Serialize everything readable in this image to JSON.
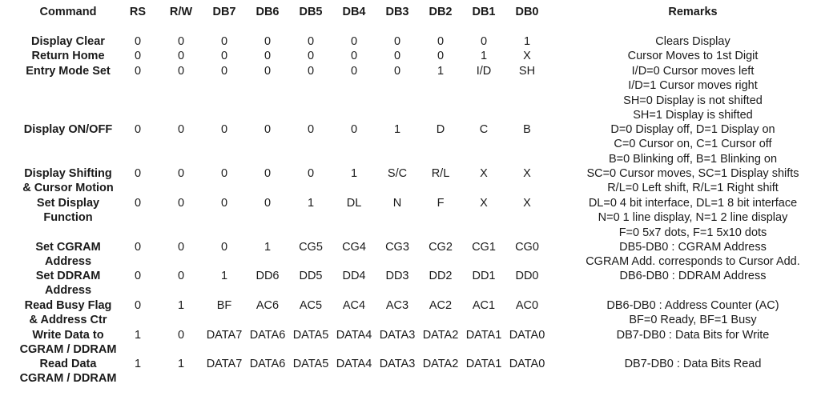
{
  "headers": {
    "command": "Command",
    "rs": "RS",
    "rw": "R/W",
    "db7": "DB7",
    "db6": "DB6",
    "db5": "DB5",
    "db4": "DB4",
    "db3": "DB3",
    "db2": "DB2",
    "db1": "DB1",
    "db0": "DB0",
    "remarks": "Remarks"
  },
  "rows": [
    {
      "command": [
        "Display Clear"
      ],
      "bits": [
        "0",
        "0",
        "0",
        "0",
        "0",
        "0",
        "0",
        "0",
        "0",
        "1"
      ],
      "remarks": [
        "Clears Display"
      ]
    },
    {
      "command": [
        "Return Home"
      ],
      "bits": [
        "0",
        "0",
        "0",
        "0",
        "0",
        "0",
        "0",
        "0",
        "1",
        "X"
      ],
      "remarks": [
        "Cursor Moves to 1st Digit"
      ]
    },
    {
      "command": [
        "Entry Mode Set"
      ],
      "bits": [
        "0",
        "0",
        "0",
        "0",
        "0",
        "0",
        "0",
        "1",
        "I/D",
        "SH"
      ],
      "remarks": [
        "I/D=0 Cursor moves left",
        "I/D=1 Cursor moves right",
        "SH=0 Display is not shifted",
        "SH=1 Display is shifted"
      ]
    },
    {
      "command": [
        "Display ON/OFF"
      ],
      "bits": [
        "0",
        "0",
        "0",
        "0",
        "0",
        "0",
        "1",
        "D",
        "C",
        "B"
      ],
      "remarks": [
        "D=0 Display off, D=1 Display on",
        "C=0 Cursor on, C=1 Cursor off",
        "B=0 Blinking off, B=1 Blinking on"
      ]
    },
    {
      "command": [
        "Display Shifting",
        "& Cursor Motion"
      ],
      "bits": [
        "0",
        "0",
        "0",
        "0",
        "0",
        "1",
        "S/C",
        "R/L",
        "X",
        "X"
      ],
      "remarks": [
        "SC=0 Cursor moves, SC=1 Display shifts",
        "R/L=0 Left shift, R/L=1 Right shift"
      ]
    },
    {
      "command": [
        "Set Display",
        "Function"
      ],
      "bits": [
        "0",
        "0",
        "0",
        "0",
        "1",
        "DL",
        "N",
        "F",
        "X",
        "X"
      ],
      "remarks": [
        "DL=0 4 bit interface, DL=1 8 bit interface",
        "N=0 1 line display, N=1 2 line display",
        "F=0 5x7 dots, F=1 5x10 dots"
      ]
    },
    {
      "command": [
        "Set CGRAM",
        "Address"
      ],
      "bits": [
        "0",
        "0",
        "0",
        "1",
        "CG5",
        "CG4",
        "CG3",
        "CG2",
        "CG1",
        "CG0"
      ],
      "remarks": [
        "DB5-DB0 : CGRAM Address",
        "CGRAM Add. corresponds to Cursor Add."
      ]
    },
    {
      "command": [
        "Set DDRAM",
        "Address"
      ],
      "bits": [
        "0",
        "0",
        "1",
        "DD6",
        "DD5",
        "DD4",
        "DD3",
        "DD2",
        "DD1",
        "DD0"
      ],
      "remarks": [
        "DB6-DB0 : DDRAM Address"
      ]
    },
    {
      "command": [
        "Read Busy Flag",
        "& Address Ctr"
      ],
      "bits": [
        "0",
        "1",
        "BF",
        "AC6",
        "AC5",
        "AC4",
        "AC3",
        "AC2",
        "AC1",
        "AC0"
      ],
      "remarks": [
        "DB6-DB0 : Address Counter (AC)",
        "BF=0 Ready, BF=1 Busy"
      ]
    },
    {
      "command": [
        "Write Data to",
        "CGRAM / DDRAM"
      ],
      "bits": [
        "1",
        "0",
        "DATA7",
        "DATA6",
        "DATA5",
        "DATA4",
        "DATA3",
        "DATA2",
        "DATA1",
        "DATA0"
      ],
      "remarks": [
        "DB7-DB0 : Data Bits for Write"
      ]
    },
    {
      "command": [
        "Read Data",
        "CGRAM / DDRAM"
      ],
      "bits": [
        "1",
        "1",
        "DATA7",
        "DATA6",
        "DATA5",
        "DATA4",
        "DATA3",
        "DATA2",
        "DATA1",
        "DATA0"
      ],
      "remarks": [
        "DB7-DB0 : Data Bits Read"
      ]
    }
  ]
}
